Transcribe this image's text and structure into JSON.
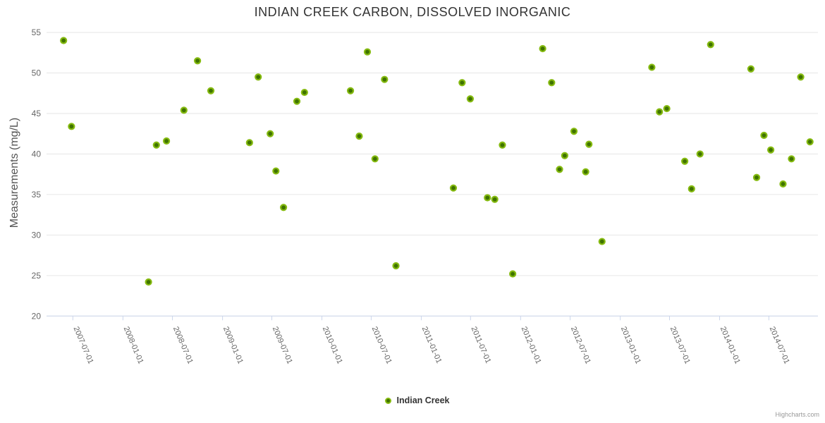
{
  "chart": {
    "title": "INDIAN CREEK CARBON, DISSOLVED INORGANIC",
    "y_axis_title": "Measurements (mg/L)"
  },
  "legend": {
    "series_label": "Indian Creek"
  },
  "credit": {
    "text": "Highcharts.com"
  },
  "colors": {
    "marker_fill": "#3f7300",
    "marker_line": "#85ba10",
    "grid_line": "#e6e6e6",
    "axis_line": "#ccd6eb",
    "title_text": "#333333",
    "axis_label_text": "#666666",
    "y_title_text": "#555555",
    "legend_text": "#333333",
    "credit_text": "#999999"
  },
  "chart_data": {
    "type": "scatter",
    "title": "INDIAN CREEK CARBON, DISSOLVED INORGANIC",
    "xlabel": "",
    "ylabel": "Measurements (mg/L)",
    "ylim": [
      20,
      55
    ],
    "y_ticks": [
      20,
      25,
      30,
      35,
      40,
      45,
      50,
      55
    ],
    "x_tick_labels": [
      "2007-07-01",
      "2008-01-01",
      "2008-07-01",
      "2009-01-01",
      "2009-07-01",
      "2010-01-01",
      "2010-07-01",
      "2011-01-01",
      "2011-07-01",
      "2012-01-01",
      "2012-07-01",
      "2013-01-01",
      "2013-07-01",
      "2014-01-01",
      "2014-07-01"
    ],
    "grid": "horizontal",
    "legend_position": "bottom-center",
    "series": [
      {
        "name": "Indian Creek",
        "points": [
          {
            "date": "2007-05-28",
            "value": 54.0
          },
          {
            "date": "2007-06-26",
            "value": 43.4
          },
          {
            "date": "2008-04-04",
            "value": 24.2
          },
          {
            "date": "2008-05-03",
            "value": 41.1
          },
          {
            "date": "2008-06-09",
            "value": 41.6
          },
          {
            "date": "2008-08-12",
            "value": 45.4
          },
          {
            "date": "2008-10-01",
            "value": 51.5
          },
          {
            "date": "2008-11-19",
            "value": 47.8
          },
          {
            "date": "2009-04-10",
            "value": 41.4
          },
          {
            "date": "2009-05-12",
            "value": 49.5
          },
          {
            "date": "2009-06-25",
            "value": 42.5
          },
          {
            "date": "2009-07-16",
            "value": 37.9
          },
          {
            "date": "2009-08-13",
            "value": 33.4
          },
          {
            "date": "2009-10-01",
            "value": 46.5
          },
          {
            "date": "2009-10-29",
            "value": 47.6
          },
          {
            "date": "2010-04-16",
            "value": 47.8
          },
          {
            "date": "2010-05-18",
            "value": 42.2
          },
          {
            "date": "2010-06-17",
            "value": 52.6
          },
          {
            "date": "2010-07-15",
            "value": 39.4
          },
          {
            "date": "2010-08-19",
            "value": 49.2
          },
          {
            "date": "2010-09-30",
            "value": 26.2
          },
          {
            "date": "2011-04-29",
            "value": 35.8
          },
          {
            "date": "2011-05-31",
            "value": 48.8
          },
          {
            "date": "2011-06-30",
            "value": 46.8
          },
          {
            "date": "2011-09-01",
            "value": 34.6
          },
          {
            "date": "2011-09-28",
            "value": 34.4
          },
          {
            "date": "2011-10-26",
            "value": 41.1
          },
          {
            "date": "2011-12-03",
            "value": 25.2
          },
          {
            "date": "2012-03-22",
            "value": 53.0
          },
          {
            "date": "2012-04-24",
            "value": 48.8
          },
          {
            "date": "2012-05-23",
            "value": 38.1
          },
          {
            "date": "2012-06-11",
            "value": 39.8
          },
          {
            "date": "2012-07-15",
            "value": 42.8
          },
          {
            "date": "2012-08-27",
            "value": 37.8
          },
          {
            "date": "2012-09-08",
            "value": 41.2
          },
          {
            "date": "2012-10-26",
            "value": 29.2
          },
          {
            "date": "2013-04-27",
            "value": 50.7
          },
          {
            "date": "2013-05-25",
            "value": 45.2
          },
          {
            "date": "2013-06-21",
            "value": 45.6
          },
          {
            "date": "2013-08-26",
            "value": 39.1
          },
          {
            "date": "2013-09-20",
            "value": 35.7
          },
          {
            "date": "2013-10-21",
            "value": 40.0
          },
          {
            "date": "2013-11-29",
            "value": 53.5
          },
          {
            "date": "2014-04-26",
            "value": 50.5
          },
          {
            "date": "2014-05-17",
            "value": 37.1
          },
          {
            "date": "2014-06-13",
            "value": 42.3
          },
          {
            "date": "2014-07-08",
            "value": 40.5
          },
          {
            "date": "2014-08-22",
            "value": 36.3
          },
          {
            "date": "2014-09-22",
            "value": 39.4
          },
          {
            "date": "2014-10-26",
            "value": 49.5
          },
          {
            "date": "2014-11-29",
            "value": 41.5
          }
        ]
      }
    ]
  }
}
